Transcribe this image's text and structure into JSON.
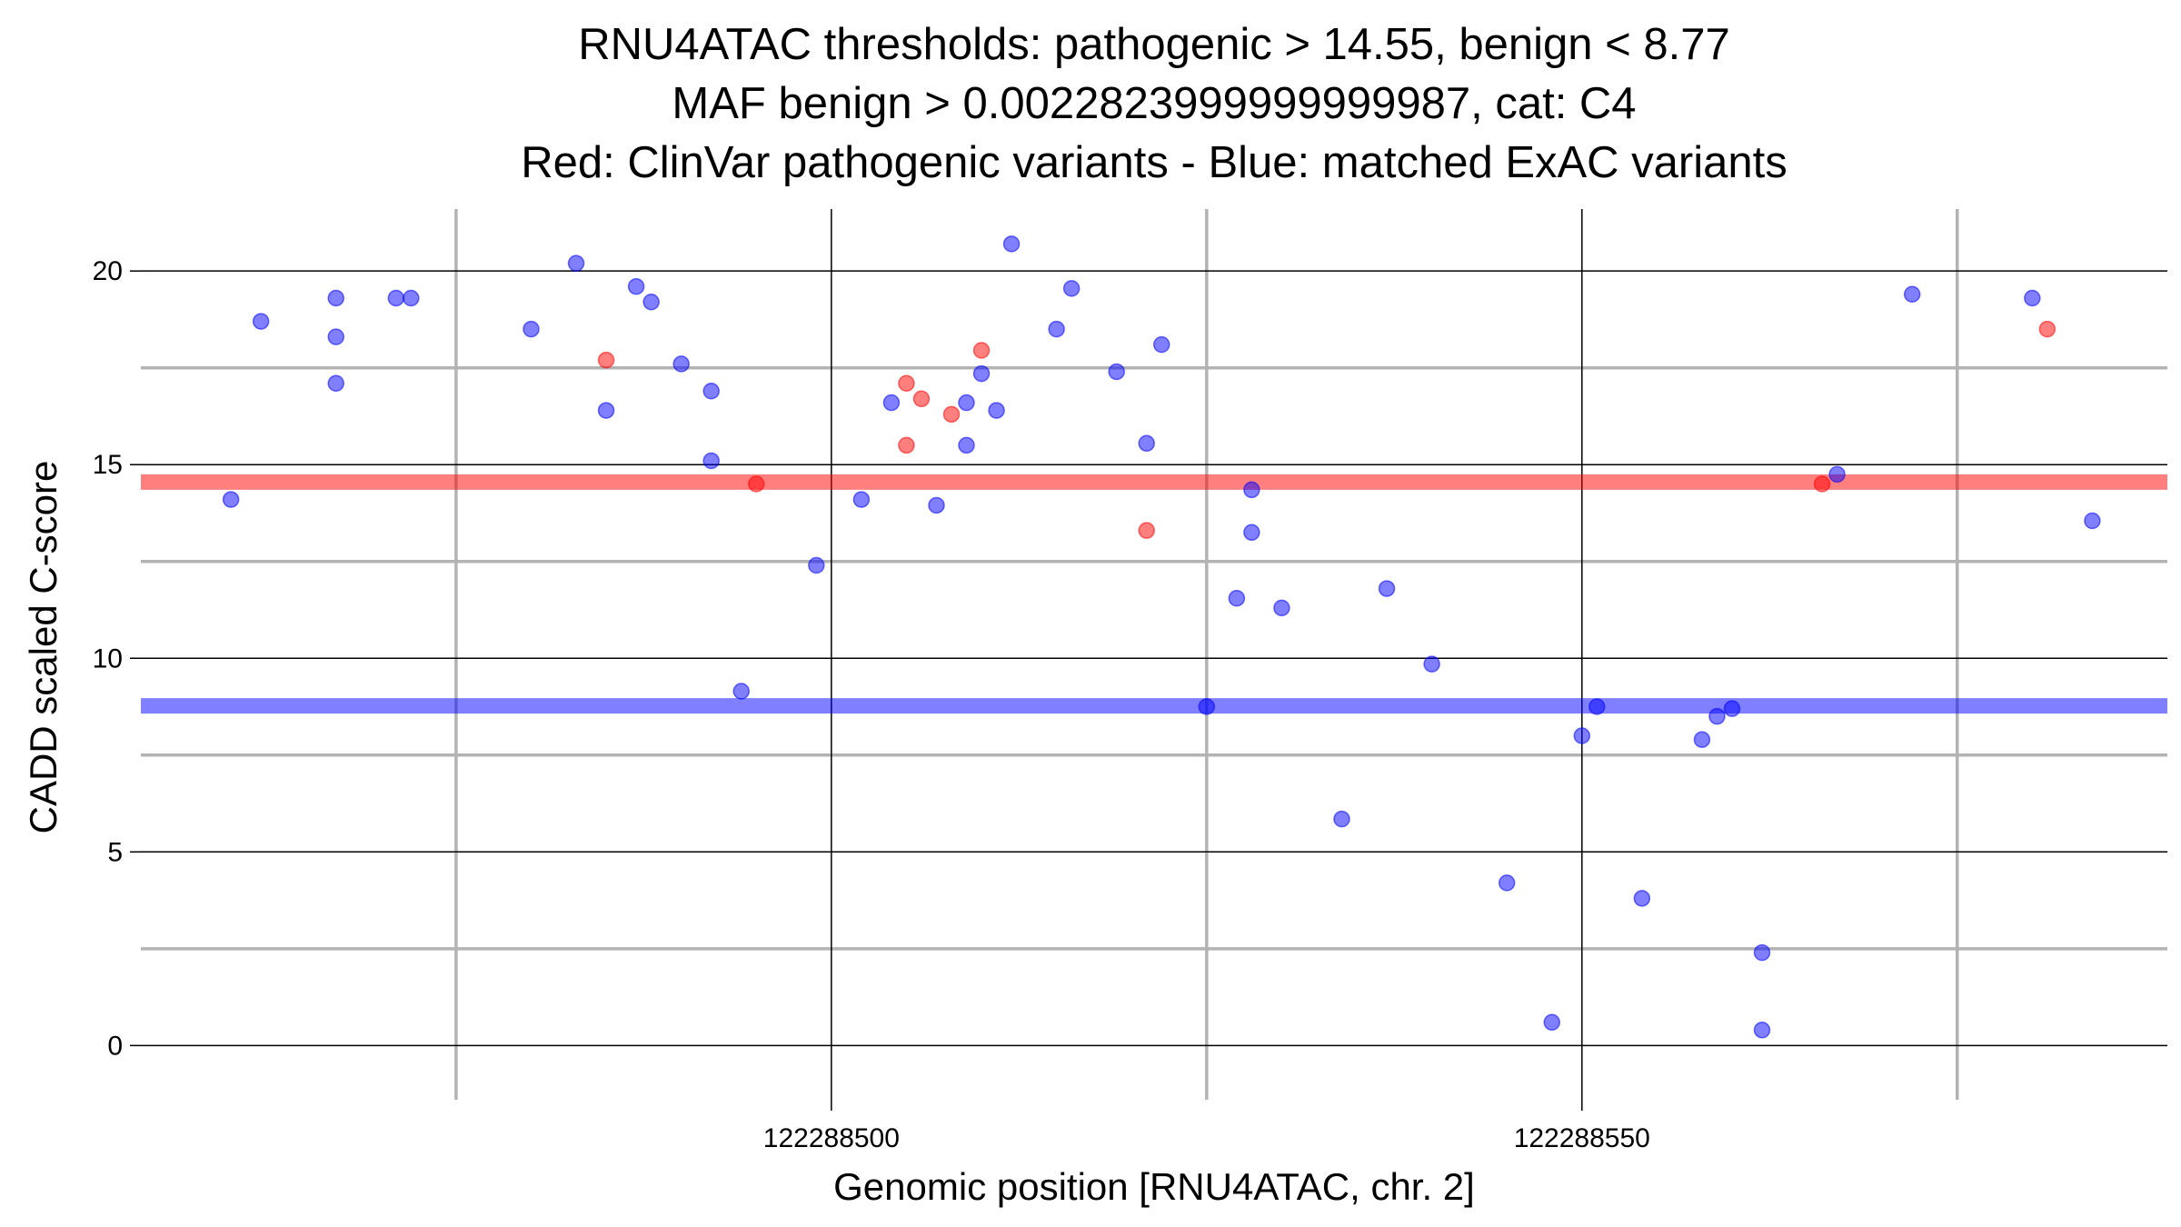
{
  "chart_data": {
    "type": "scatter",
    "title_lines": [
      "RNU4ATAC thresholds: pathogenic > 14.55, benign < 8.77",
      "MAF benign > 0.0022823999999999987, cat: C4",
      "Red: ClinVar pathogenic variants - Blue: matched ExAC variants"
    ],
    "xlabel": "Genomic position [RNU4ATAC, chr. 2]",
    "ylabel": "CADD scaled C-score",
    "xlim": [
      122288454,
      122288589
    ],
    "ylim": [
      -1.4,
      21.6
    ],
    "x_ticks": [
      122288500,
      122288550
    ],
    "x_tick_labels": [
      "122288500",
      "122288550"
    ],
    "x_minor_gridlines": [
      122288475,
      122288525,
      122288575
    ],
    "y_ticks": [
      0,
      5,
      10,
      15,
      20
    ],
    "y_tick_labels": [
      "0",
      "5",
      "10",
      "15",
      "20"
    ],
    "y_minor_gridlines": [
      2.5,
      7.5,
      12.5,
      17.5
    ],
    "grid": true,
    "thresholds": {
      "pathogenic": 14.55,
      "benign": 8.77,
      "pathogenic_color": "#ff0000",
      "benign_color": "#0000ff"
    },
    "series": [
      {
        "color": "#0000ff",
        "points": [
          [
            122288460,
            14.1
          ],
          [
            122288462,
            18.7
          ],
          [
            122288467,
            19.3
          ],
          [
            122288467,
            18.3
          ],
          [
            122288467,
            17.1
          ],
          [
            122288471,
            19.3
          ],
          [
            122288472,
            19.3
          ],
          [
            122288480,
            18.5
          ],
          [
            122288483,
            20.2
          ],
          [
            122288485,
            16.4
          ],
          [
            122288487,
            19.6
          ],
          [
            122288488,
            19.2
          ],
          [
            122288490,
            17.6
          ],
          [
            122288492,
            16.9
          ],
          [
            122288492,
            15.1
          ],
          [
            122288494,
            9.15
          ],
          [
            122288499,
            12.4
          ],
          [
            122288502,
            14.1
          ],
          [
            122288504,
            16.6
          ],
          [
            122288507,
            13.95
          ],
          [
            122288509,
            16.6
          ],
          [
            122288509,
            15.5
          ],
          [
            122288510,
            17.35
          ],
          [
            122288511,
            16.4
          ],
          [
            122288512,
            20.7
          ],
          [
            122288515,
            18.5
          ],
          [
            122288516,
            19.55
          ],
          [
            122288519,
            17.4
          ],
          [
            122288521,
            15.55
          ],
          [
            122288522,
            18.1
          ],
          [
            122288525,
            8.75
          ],
          [
            122288527,
            11.55
          ],
          [
            122288528,
            14.35
          ],
          [
            122288528,
            13.25
          ],
          [
            122288530,
            11.3
          ],
          [
            122288534,
            5.85
          ],
          [
            122288537,
            11.8
          ],
          [
            122288540,
            9.85
          ],
          [
            122288545,
            4.2
          ],
          [
            122288548,
            0.6
          ],
          [
            122288550,
            8.0
          ],
          [
            122288551,
            8.75
          ],
          [
            122288554,
            3.8
          ],
          [
            122288558,
            7.9
          ],
          [
            122288559,
            8.5
          ],
          [
            122288560,
            8.7
          ],
          [
            122288562,
            2.4
          ],
          [
            122288562,
            0.4
          ],
          [
            122288567,
            14.75
          ],
          [
            122288572,
            19.4
          ],
          [
            122288580,
            19.3
          ],
          [
            122288584,
            13.55
          ]
        ]
      },
      {
        "color": "#ff0000",
        "points": [
          [
            122288485,
            17.7
          ],
          [
            122288495,
            14.5
          ],
          [
            122288505,
            17.1
          ],
          [
            122288505,
            15.5
          ],
          [
            122288506,
            16.7
          ],
          [
            122288508,
            16.3
          ],
          [
            122288510,
            17.95
          ],
          [
            122288521,
            13.3
          ],
          [
            122288566,
            14.5
          ],
          [
            122288581,
            18.5
          ]
        ]
      }
    ]
  }
}
